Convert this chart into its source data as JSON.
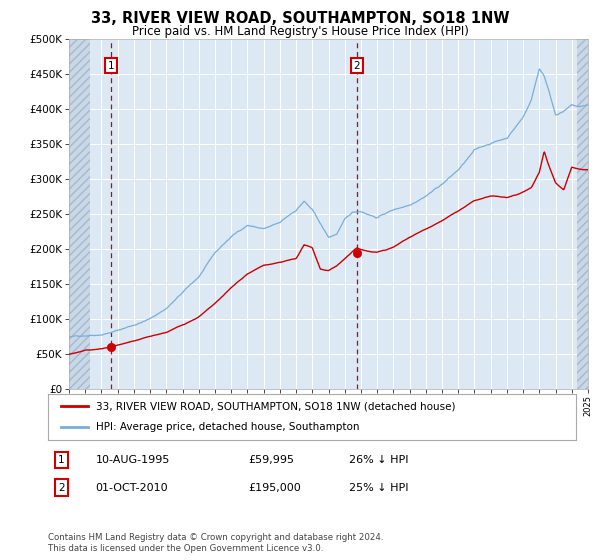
{
  "title": "33, RIVER VIEW ROAD, SOUTHAMPTON, SO18 1NW",
  "subtitle": "Price paid vs. HM Land Registry's House Price Index (HPI)",
  "plot_bg_color": "#dce9f5",
  "hatch_color": "#c0d0e0",
  "grid_color": "#ffffff",
  "red_line_color": "#cc0000",
  "blue_line_color": "#7aaed6",
  "marker_color": "#cc0000",
  "dashed_line_color": "#cc0000",
  "ylim": [
    0,
    500000
  ],
  "yticks": [
    0,
    50000,
    100000,
    150000,
    200000,
    250000,
    300000,
    350000,
    400000,
    450000,
    500000
  ],
  "ytick_labels": [
    "£0",
    "£50K",
    "£100K",
    "£150K",
    "£200K",
    "£250K",
    "£300K",
    "£350K",
    "£400K",
    "£450K",
    "£500K"
  ],
  "sale1_date": 1995.61,
  "sale1_price": 59995,
  "sale1_label": "1",
  "sale2_date": 2010.75,
  "sale2_price": 195000,
  "sale2_label": "2",
  "legend_red": "33, RIVER VIEW ROAD, SOUTHAMPTON, SO18 1NW (detached house)",
  "legend_blue": "HPI: Average price, detached house, Southampton",
  "table_row1": [
    "1",
    "10-AUG-1995",
    "£59,995",
    "26% ↓ HPI"
  ],
  "table_row2": [
    "2",
    "01-OCT-2010",
    "£195,000",
    "25% ↓ HPI"
  ],
  "footnote": "Contains HM Land Registry data © Crown copyright and database right 2024.\nThis data is licensed under the Open Government Licence v3.0."
}
